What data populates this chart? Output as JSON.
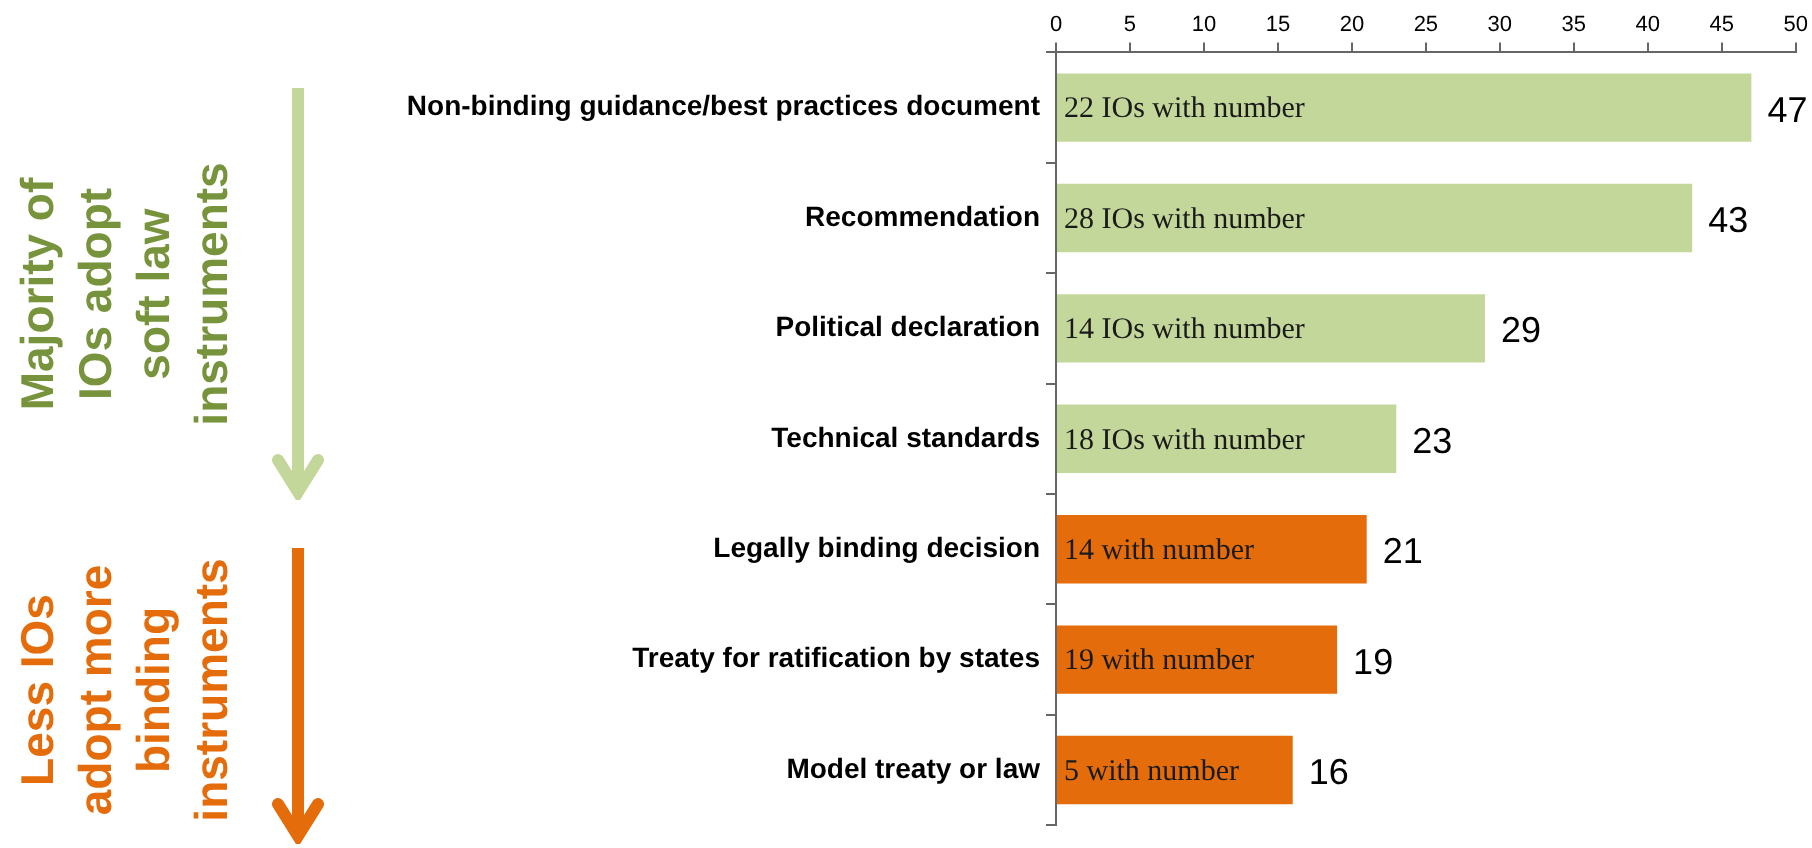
{
  "chart_data": {
    "type": "bar",
    "orientation": "horizontal",
    "categories": [
      "Non-binding guidance/best practices document",
      "Recommendation",
      "Political declaration",
      "Technical standards",
      "Legally binding decision",
      "Treaty for ratification by states",
      "Model treaty or law"
    ],
    "values": [
      47,
      43,
      29,
      23,
      21,
      19,
      16
    ],
    "colors": [
      "#c4d79b",
      "#c4d79b",
      "#c4d79b",
      "#c4d79b",
      "#e46c0a",
      "#e46c0a",
      "#e46c0a"
    ],
    "xlim": [
      0,
      50
    ],
    "xticks": [
      0,
      5,
      10,
      15,
      20,
      25,
      30,
      35,
      40,
      45,
      50
    ],
    "grid": false,
    "legend": false,
    "data_labels": true,
    "annotations": [
      "Majority of\nIOs adopt\nsoft law\ninstruments",
      "Less IOs\nadopt more\nbinding\ninstruments",
      {
        "text": "22 IOs with number",
        "y": "Non-binding guidance/best practices document"
      },
      {
        "text": "28 IOs with number",
        "y": "Recommendation"
      },
      {
        "text": "14 IOs with number",
        "y": "Political declaration"
      },
      {
        "text": "18 IOs with number",
        "y": "Technical standards"
      },
      {
        "text": "14 with number",
        "y": "Legally binding decision"
      },
      {
        "text": "19 with number",
        "y": "Treaty for ratification by states"
      },
      {
        "text": "5 with number",
        "y": "Model treaty or law"
      }
    ]
  }
}
